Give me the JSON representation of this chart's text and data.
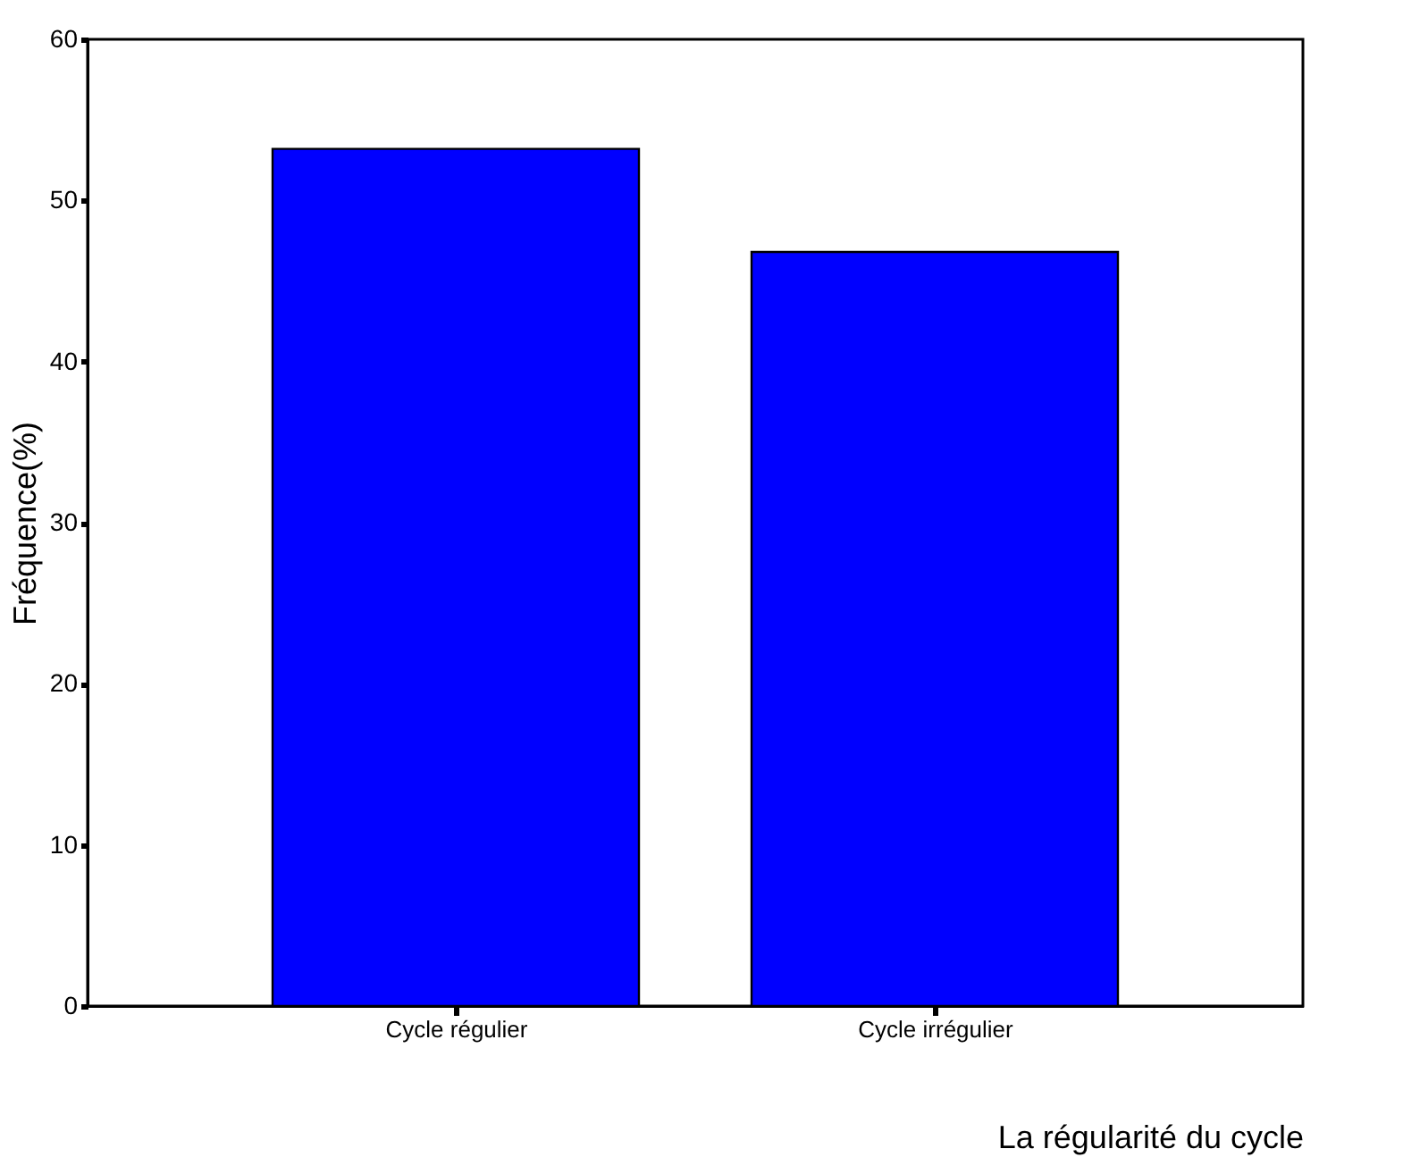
{
  "chart_data": {
    "type": "bar",
    "xlabel": "La régularité du cycle",
    "ylabel": "Fréquence(%)",
    "categories": [
      "Cycle régulier",
      "Cycle irrégulier"
    ],
    "values": [
      53.2,
      46.8
    ],
    "color": "#0000ff",
    "ylim": [
      0,
      60
    ],
    "yticks": [
      0,
      10,
      20,
      30,
      40,
      50,
      60
    ]
  }
}
